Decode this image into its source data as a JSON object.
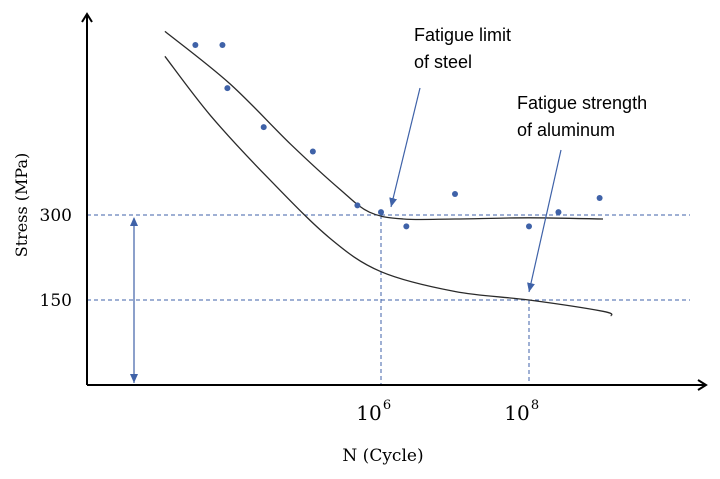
{
  "chart_data": {
    "type": "scatter",
    "title": "",
    "xlabel": "N (Cycle)",
    "ylabel": "Stress (MPa)",
    "x_scale": "log",
    "grid": false,
    "x_ticks": [
      {
        "base": "10",
        "exp": "6",
        "value": 1000000
      },
      {
        "base": "10",
        "exp": "8",
        "value": 100000000
      }
    ],
    "y_ticks": [
      {
        "label": "300",
        "value": 300
      },
      {
        "label": "150",
        "value": 150
      }
    ],
    "series": [
      {
        "style": "points",
        "color": "#3f62a8",
        "points": [
          {
            "x": 3100,
            "y": 600
          },
          {
            "x": 7200,
            "y": 600
          },
          {
            "x": 8400,
            "y": 524
          },
          {
            "x": 26000,
            "y": 455
          },
          {
            "x": 120000,
            "y": 412
          },
          {
            "x": 480000,
            "y": 317
          },
          {
            "x": 1000000,
            "y": 305
          },
          {
            "x": 2200000,
            "y": 280
          },
          {
            "x": 10000000,
            "y": 337
          },
          {
            "x": 100000000,
            "y": 280
          },
          {
            "x": 250000000,
            "y": 305
          },
          {
            "x": 900000000,
            "y": 330
          }
        ]
      },
      {
        "style": "line",
        "color": "#2a2a2a",
        "points": [
          {
            "x": 1200,
            "y": 624
          },
          {
            "x": 9000,
            "y": 532
          },
          {
            "x": 60000,
            "y": 425
          },
          {
            "x": 280000,
            "y": 345
          },
          {
            "x": 700000,
            "y": 305
          },
          {
            "x": 2000000,
            "y": 293
          },
          {
            "x": 10000000,
            "y": 293
          },
          {
            "x": 100000000,
            "y": 295
          },
          {
            "x": 1000000000,
            "y": 293
          }
        ]
      },
      {
        "style": "line",
        "color": "#2a2a2a",
        "points": [
          {
            "x": 1200,
            "y": 580
          },
          {
            "x": 5000,
            "y": 475
          },
          {
            "x": 30000,
            "y": 365
          },
          {
            "x": 200000,
            "y": 260
          },
          {
            "x": 1000000,
            "y": 200
          },
          {
            "x": 10000000,
            "y": 165
          },
          {
            "x": 100000000,
            "y": 150
          },
          {
            "x": 1000000000,
            "y": 130
          },
          {
            "x": 1300000000,
            "y": 122
          }
        ]
      }
    ],
    "annotations": [
      {
        "lines": [
          "Fatigue  limit",
          "of steel"
        ],
        "points_to": {
          "x": 1000000,
          "y": 300
        }
      },
      {
        "lines": [
          "Fatigue  strength",
          "of aluminum"
        ],
        "points_to": {
          "x": 100000000,
          "y": 150
        }
      }
    ],
    "reference_lines": [
      {
        "axis": "y",
        "value": 300,
        "style": "dashed",
        "color": "#3f62a8"
      },
      {
        "axis": "y",
        "value": 150,
        "style": "dashed",
        "color": "#3f62a8"
      },
      {
        "axis": "x",
        "value": 1000000,
        "style": "dashed",
        "color": "#3f62a8"
      },
      {
        "axis": "x",
        "value": 100000000,
        "style": "dashed",
        "color": "#3f62a8"
      }
    ],
    "double_arrow": {
      "x": 700,
      "from": 0,
      "to": 300,
      "color": "#3f62a8"
    }
  }
}
